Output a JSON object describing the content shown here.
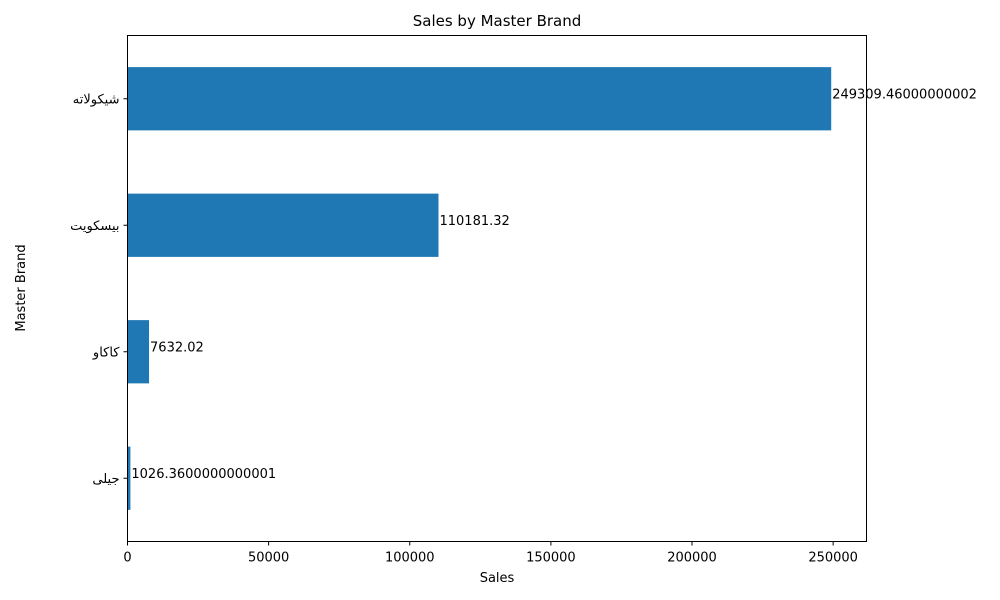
{
  "chart_data": {
    "type": "bar",
    "orientation": "horizontal",
    "title": "Sales by Master Brand",
    "xlabel": "Sales",
    "ylabel": "Master Brand",
    "bar_color": "#1f77b4",
    "xlim": [
      0,
      261814
    ],
    "xticks": [
      0,
      50000,
      100000,
      150000,
      200000,
      250000
    ],
    "xtick_labels": [
      "0",
      "50000",
      "100000",
      "150000",
      "200000",
      "250000"
    ],
    "grid": false,
    "categories": [
      "شيكولاته",
      "بيسكويت",
      "كاكاو",
      "جيلى"
    ],
    "values": [
      249309.46000000002,
      110181.32,
      7632.02,
      1026.3600000000001
    ],
    "value_labels": [
      "249309.46000000002",
      "110181.32",
      "7632.02",
      "1026.3600000000001"
    ]
  }
}
